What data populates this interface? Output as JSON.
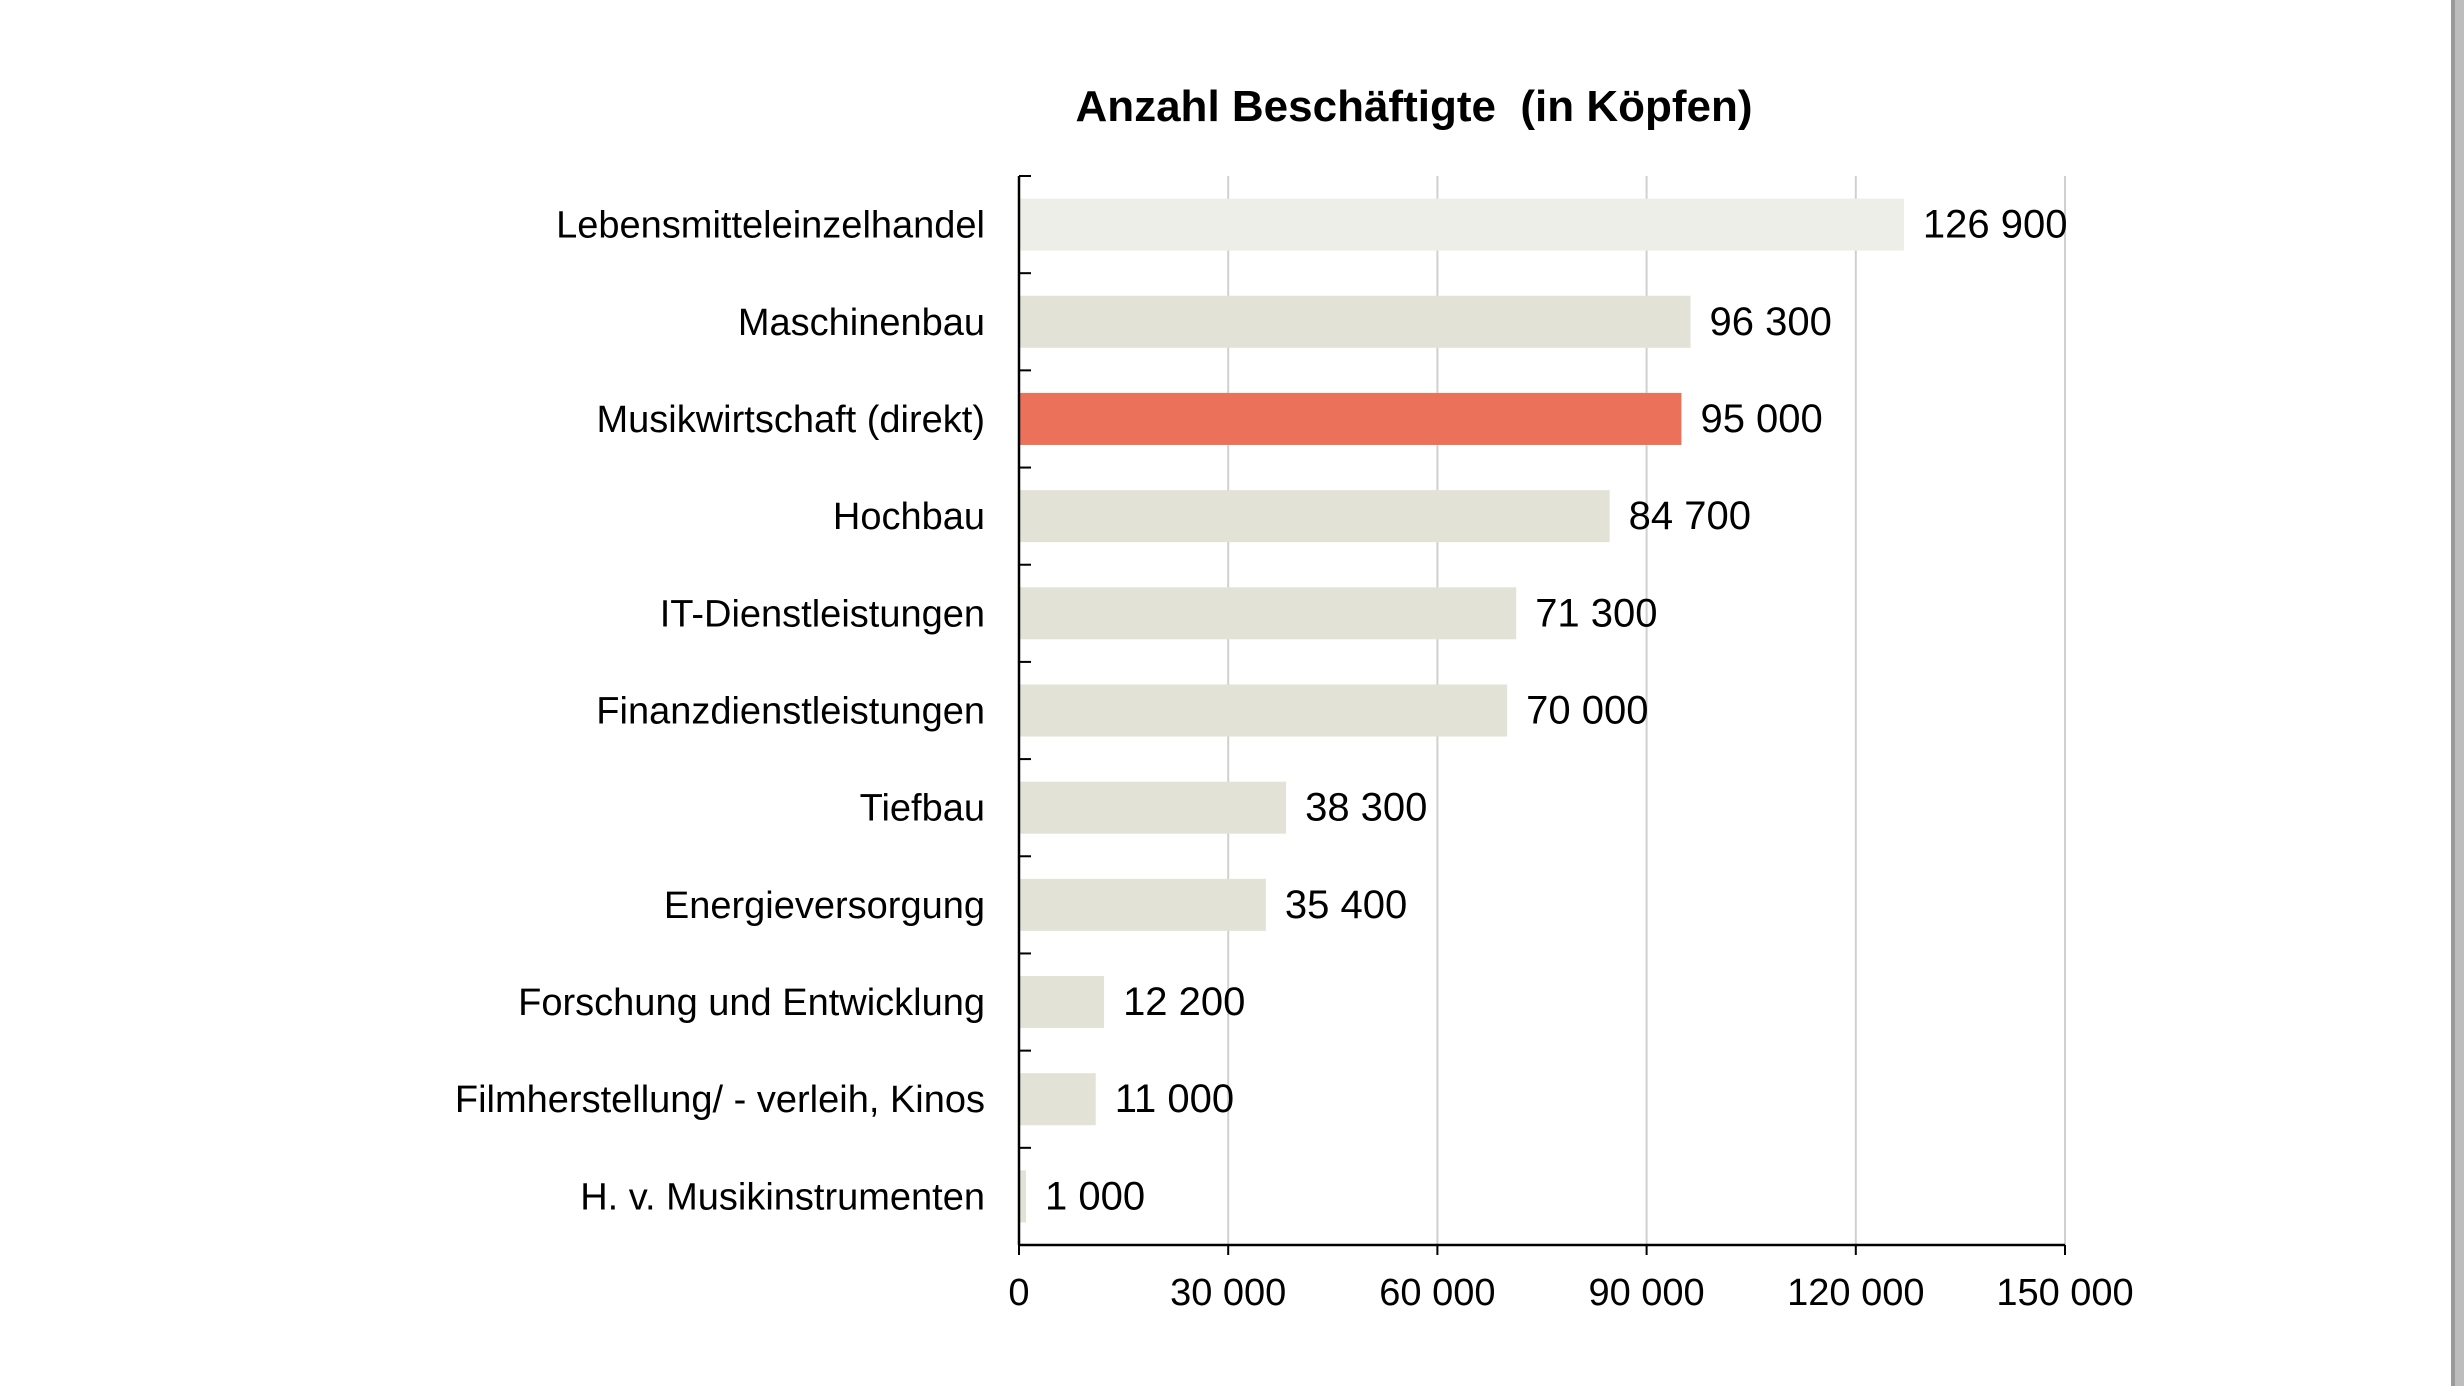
{
  "chart_data": {
    "type": "bar",
    "orientation": "horizontal",
    "title": "Anzahl Beschäftigte  (in Köpfen)",
    "xlabel": "",
    "ylabel": "",
    "xlim": [
      0,
      150000
    ],
    "grid": true,
    "legend": "none",
    "categories": [
      "Lebensmitteleinzelhandel",
      "Maschinenbau",
      "Musikwirtschaft (direkt)",
      "Hochbau",
      "IT-Dienstleistungen",
      "Finanzdienstleistungen",
      "Tiefbau",
      "Energieversorgung",
      "Forschung und Entwicklung",
      "Filmherstellung/ - verleih, Kinos",
      "H. v. Musikinstrumenten"
    ],
    "values": [
      126900,
      96300,
      95000,
      84700,
      71300,
      70000,
      38300,
      35400,
      12200,
      11000,
      1000
    ],
    "value_labels": [
      "126 900",
      "96 300",
      "95 000",
      "84 700",
      "71 300",
      "70 000",
      "38 300",
      "35 400",
      "12 200",
      "11 000",
      "1 000"
    ],
    "x_ticks": [
      0,
      30000,
      60000,
      90000,
      120000,
      150000
    ],
    "x_tick_labels": [
      "0",
      "30 000",
      "60 000",
      "90 000",
      "120 000",
      "150 000"
    ],
    "bar_colors": [
      "#eeeee8",
      "#e2e2d6",
      "#ec715a",
      "#e2e2d6",
      "#e2e2d6",
      "#e2e2d6",
      "#e2e2d6",
      "#e2e2d6",
      "#e2e2d6",
      "#e2e2d6",
      "#e2e2d6"
    ],
    "highlight_color": "#ec715a",
    "bar_color": "#e2e2d6",
    "grid_color": "#d0d0d0",
    "axis_color": "#000000"
  }
}
